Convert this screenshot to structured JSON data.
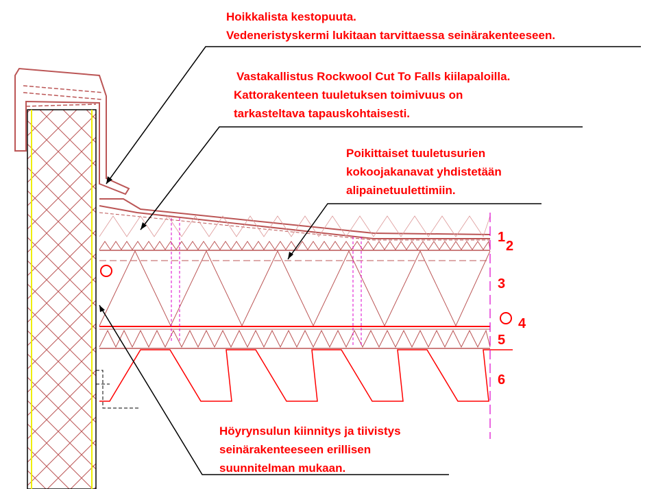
{
  "annotations": [
    {
      "lines": [
        "Hoikkalista kestopuuta.",
        "Vedeneristyskermi lukitaan tarvittaessa seinärakenteeseen."
      ]
    },
    {
      "lines": [
        "Vastakallistus Rockwool Cut To Falls kiilapaloilla.",
        "Kattorakenteen tuuletuksen toimivuus on",
        "tarkasteltava tapauskohtaisesti."
      ]
    },
    {
      "lines": [
        "Poikittaiset  tuuletusurien",
        "kokoojakanavat yhdistetään",
        "alipainetuulettimiin."
      ]
    },
    {
      "lines": [
        "Höyrynsulun kiinnitys ja tiivistys",
        "seinärakenteeseen erillisen",
        "suunnitelman mukaan."
      ]
    }
  ],
  "layers": [
    "1",
    "2",
    "3",
    "4",
    "5",
    "6"
  ]
}
